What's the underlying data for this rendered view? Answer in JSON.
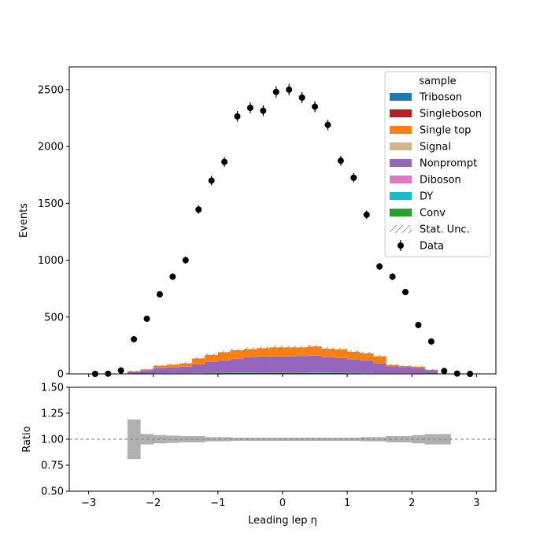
{
  "chart_data": {
    "type": "bar",
    "xlabel": "Leading lep η",
    "ylabel": "Events",
    "ratio_ylabel": "Ratio",
    "xlim": [
      -3.3,
      3.3
    ],
    "ylim": [
      0,
      2700
    ],
    "ratio_ylim": [
      0.5,
      1.5
    ],
    "x_ticks": [
      "−3",
      "−2",
      "−1",
      "0",
      "1",
      "2",
      "3"
    ],
    "y_ticks": [
      "0",
      "500",
      "1000",
      "1500",
      "2000",
      "2500"
    ],
    "ratio_ticks": [
      "0.50",
      "0.75",
      "1.00",
      "1.25",
      "1.50"
    ],
    "legend_title": "sample",
    "legend_position": "top-right",
    "bins": [
      -3.0,
      -2.8,
      -2.6,
      -2.4,
      -2.2,
      -2.0,
      -1.8,
      -1.6,
      -1.4,
      -1.2,
      -1.0,
      -0.8,
      -0.6,
      -0.4,
      -0.2,
      0.0,
      0.2,
      0.4,
      0.6,
      0.8,
      1.0,
      1.2,
      1.4,
      1.6,
      1.8,
      2.0,
      2.2,
      2.4,
      2.6,
      2.8,
      3.0
    ],
    "stack": [
      {
        "name": "Conv",
        "color": "#2ca02c",
        "values": [
          0,
          0,
          0,
          1,
          2,
          3,
          4,
          4,
          5,
          6,
          7,
          8,
          9,
          10,
          11,
          11,
          10,
          9,
          8,
          7,
          6,
          5,
          4,
          4,
          3,
          2,
          1,
          0,
          0,
          0
        ]
      },
      {
        "name": "DY",
        "color": "#17becf",
        "values": [
          0,
          0,
          0,
          0,
          0,
          1,
          1,
          1,
          1,
          1,
          1,
          1,
          1,
          1,
          1,
          1,
          1,
          1,
          1,
          1,
          1,
          1,
          1,
          1,
          1,
          1,
          0,
          0,
          0,
          0
        ]
      },
      {
        "name": "Diboson",
        "color": "#e377c2",
        "values": [
          0,
          0,
          0,
          0,
          1,
          1,
          1,
          1,
          2,
          2,
          2,
          2,
          2,
          2,
          2,
          2,
          2,
          2,
          2,
          2,
          2,
          2,
          1,
          1,
          1,
          1,
          1,
          0,
          0,
          0
        ]
      },
      {
        "name": "Nonprompt",
        "color": "#9467bd",
        "values": [
          0,
          0,
          0,
          18,
          30,
          44,
          50,
          58,
          75,
          95,
          110,
          120,
          135,
          140,
          140,
          140,
          145,
          148,
          135,
          130,
          120,
          110,
          88,
          62,
          54,
          50,
          30,
          0,
          0,
          0
        ]
      },
      {
        "name": "Signal",
        "color": "#d2b48c",
        "values": [
          0,
          0,
          0,
          0,
          0,
          1,
          1,
          1,
          1,
          1,
          1,
          1,
          1,
          1,
          1,
          1,
          1,
          1,
          1,
          1,
          1,
          1,
          1,
          1,
          1,
          1,
          0,
          0,
          0,
          0
        ]
      },
      {
        "name": "Single top",
        "color": "#ff7f0e",
        "values": [
          0,
          0,
          0,
          5,
          7,
          22,
          24,
          28,
          52,
          62,
          70,
          76,
          70,
          72,
          78,
          78,
          74,
          80,
          75,
          74,
          65,
          62,
          60,
          10,
          9,
          8,
          5,
          0,
          0,
          0
        ]
      },
      {
        "name": "Singleboson",
        "color": "#b22222",
        "values": [
          0,
          0,
          0,
          0,
          0,
          0,
          0,
          0,
          0,
          0,
          0,
          0,
          0,
          0,
          0,
          0,
          0,
          0,
          0,
          0,
          0,
          0,
          0,
          0,
          0,
          0,
          0,
          0,
          0,
          0
        ]
      },
      {
        "name": "Triboson",
        "color": "#1f77b4",
        "values": [
          0,
          0,
          0,
          0,
          0,
          0,
          0,
          0,
          0,
          0,
          0,
          0,
          0,
          0,
          0,
          0,
          0,
          0,
          0,
          0,
          0,
          0,
          0,
          0,
          0,
          0,
          0,
          0,
          0,
          0
        ]
      }
    ],
    "data_points": {
      "name": "Data",
      "x": [
        -2.9,
        -2.7,
        -2.5,
        -2.3,
        -2.1,
        -1.9,
        -1.7,
        -1.5,
        -1.3,
        -1.1,
        -0.9,
        -0.7,
        -0.5,
        -0.3,
        -0.1,
        0.1,
        0.3,
        0.5,
        0.7,
        0.9,
        1.1,
        1.3,
        1.5,
        1.7,
        1.9,
        2.1,
        2.3,
        2.5,
        2.7,
        2.9
      ],
      "y": [
        0,
        2,
        30,
        305,
        485,
        700,
        855,
        1000,
        1445,
        1700,
        1865,
        2265,
        2340,
        2315,
        2480,
        2500,
        2430,
        2350,
        2190,
        1875,
        1725,
        1400,
        945,
        855,
        720,
        430,
        285,
        25,
        3,
        0
      ]
    },
    "ratio_unc": [
      0,
      0,
      0,
      0.19,
      0.05,
      0.04,
      0.035,
      0.03,
      0.03,
      0.02,
      0.02,
      0.015,
      0.015,
      0.015,
      0.015,
      0.015,
      0.015,
      0.015,
      0.015,
      0.015,
      0.015,
      0.02,
      0.02,
      0.03,
      0.03,
      0.04,
      0.05,
      0.05,
      0,
      0
    ],
    "legend": [
      {
        "label": "Triboson",
        "color": "#1f77b4",
        "kind": "patch"
      },
      {
        "label": "Singleboson",
        "color": "#b22222",
        "kind": "patch"
      },
      {
        "label": "Single top",
        "color": "#ff7f0e",
        "kind": "patch"
      },
      {
        "label": "Signal",
        "color": "#d2b48c",
        "kind": "patch"
      },
      {
        "label": "Nonprompt",
        "color": "#9467bd",
        "kind": "patch"
      },
      {
        "label": "Diboson",
        "color": "#e377c2",
        "kind": "patch"
      },
      {
        "label": "DY",
        "color": "#17becf",
        "kind": "patch"
      },
      {
        "label": "Conv",
        "color": "#2ca02c",
        "kind": "patch"
      },
      {
        "label": "Stat. Unc.",
        "color": "#808080",
        "kind": "hatch"
      },
      {
        "label": "Data",
        "color": "#000000",
        "kind": "marker"
      }
    ]
  }
}
